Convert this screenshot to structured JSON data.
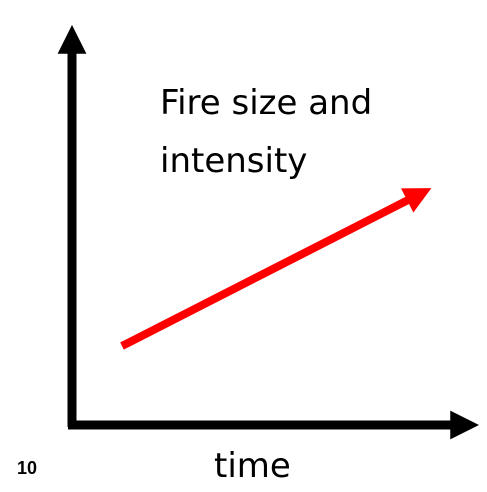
{
  "annotation": {
    "lines": [
      "Fire size and",
      "intensity"
    ]
  },
  "x_axis_label": "time",
  "slide_number": "10"
}
